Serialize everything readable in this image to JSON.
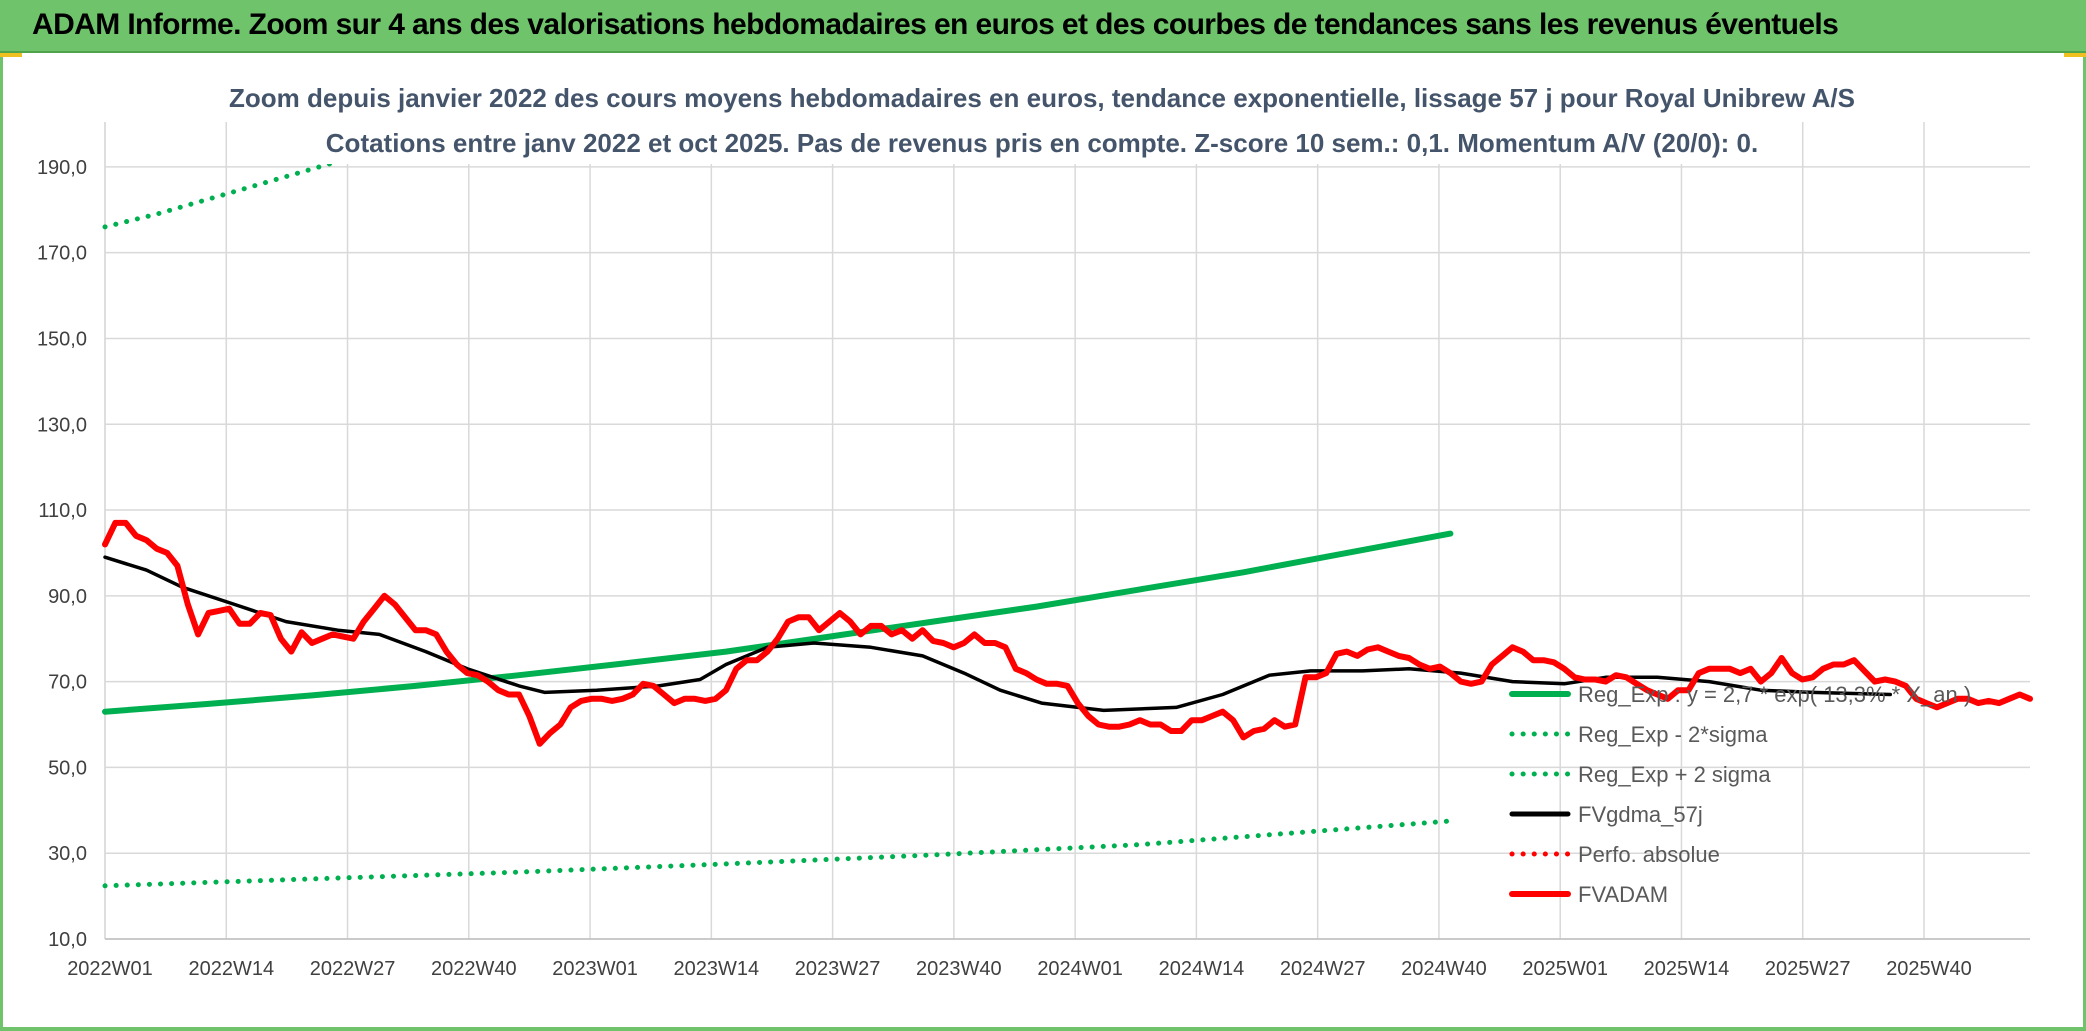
{
  "header": {
    "title": "ADAM Informe. Zoom sur 4 ans des valorisations hebdomadaires en euros et des courbes de tendances sans les revenus éventuels"
  },
  "chart_data": {
    "type": "line",
    "title_line1": "Zoom depuis janvier 2022 des cours moyens hebdomadaires en euros, tendance exponentielle, lissage 57 j pour Royal Unibrew A/S",
    "title_line2": "Cotations entre janv 2022 et oct 2025. Pas de revenus pris en compte. Z-score 10 sem.: 0,1. Momentum A/V (20/0): 0.",
    "ylim": [
      10,
      200
    ],
    "y_ticks": [
      10,
      30,
      50,
      70,
      90,
      110,
      130,
      150,
      170,
      190
    ],
    "y_tick_labels": [
      "10,0",
      "30,0",
      "50,0",
      "70,0",
      "90,0",
      "110,0",
      "130,0",
      "150,0",
      "170,0",
      "190,0"
    ],
    "x_count": 199,
    "x_tick_labels": [
      "2022W01",
      "2022W14",
      "2022W27",
      "2022W40",
      "2023W01",
      "2023W14",
      "2023W27",
      "2023W40",
      "2024W01",
      "2024W14",
      "2024W27",
      "2024W40",
      "2025W01",
      "2025W14",
      "2025W27",
      "2025W40"
    ],
    "legend_position": "bottom-right",
    "grid": true,
    "series": [
      {
        "name": "Reg_Exp : y = 2,7 * exp( 13,3% * X_an )",
        "style": "solid",
        "color": "#00b050",
        "points": [
          [
            0,
            63
          ],
          [
            20,
            64.8
          ],
          [
            40,
            66.8
          ],
          [
            60,
            69
          ],
          [
            80,
            71.5
          ],
          [
            100,
            74.2
          ],
          [
            120,
            77
          ],
          [
            140,
            80.5
          ],
          [
            160,
            84
          ],
          [
            180,
            87.5
          ],
          [
            200,
            91.5
          ],
          [
            220,
            95.5
          ],
          [
            240,
            100
          ],
          [
            260,
            104.5
          ]
        ]
      },
      {
        "name": "Reg_Exp - 2*sigma",
        "style": "dotted",
        "color": "#00b050",
        "points": [
          [
            0,
            22.4
          ],
          [
            40,
            24
          ],
          [
            80,
            25.6
          ],
          [
            120,
            27.5
          ],
          [
            160,
            29.6
          ],
          [
            200,
            32
          ],
          [
            260,
            37.5
          ]
        ]
      },
      {
        "name": "Reg_Exp + 2 sigma",
        "style": "dotted",
        "color": "#00b050",
        "points": [
          [
            0,
            176
          ],
          [
            10,
            179
          ],
          [
            20,
            182.5
          ],
          [
            30,
            186
          ],
          [
            40,
            189.5
          ],
          [
            50,
            193
          ],
          [
            60,
            196.5
          ],
          [
            70,
            200
          ]
        ],
        "points_upper": [
          [
            226,
            200
          ],
          [
            260,
            200
          ]
        ]
      },
      {
        "name": "FVgdma_57j",
        "style": "solid",
        "color": "#000000",
        "points": [
          [
            0,
            99
          ],
          [
            8,
            96
          ],
          [
            15,
            92
          ],
          [
            25,
            88
          ],
          [
            35,
            84
          ],
          [
            45,
            82
          ],
          [
            53,
            81
          ],
          [
            62,
            77
          ],
          [
            70,
            73
          ],
          [
            80,
            69
          ],
          [
            85,
            67.5
          ],
          [
            95,
            68
          ],
          [
            107,
            69
          ],
          [
            115,
            70.5
          ],
          [
            120,
            74
          ],
          [
            128,
            78
          ],
          [
            137,
            79
          ],
          [
            148,
            78
          ],
          [
            158,
            76
          ],
          [
            166,
            72
          ],
          [
            173,
            68
          ],
          [
            181,
            65
          ],
          [
            193,
            63.3
          ],
          [
            207,
            64
          ],
          [
            216,
            67
          ],
          [
            225,
            71.5
          ],
          [
            233,
            72.5
          ],
          [
            243,
            72.5
          ],
          [
            252,
            73
          ],
          [
            262,
            72
          ],
          [
            272,
            70
          ],
          [
            282,
            69.5
          ],
          [
            290,
            71
          ],
          [
            300,
            71
          ],
          [
            310,
            70
          ],
          [
            320,
            68
          ],
          [
            330,
            67.5
          ],
          [
            345,
            67
          ]
        ]
      },
      {
        "name": "Perfo. absolue",
        "style": "dotted",
        "color": "#ff0000",
        "points": []
      },
      {
        "name": "FVADAM",
        "style": "solid",
        "color": "#ff0000",
        "points": [
          [
            0,
            102
          ],
          [
            2,
            107
          ],
          [
            4,
            107
          ],
          [
            6,
            104
          ],
          [
            8,
            103
          ],
          [
            10,
            101
          ],
          [
            12,
            100
          ],
          [
            14,
            97
          ],
          [
            16,
            88
          ],
          [
            18,
            81
          ],
          [
            20,
            86
          ],
          [
            22,
            86.5
          ],
          [
            24,
            87
          ],
          [
            26,
            83.5
          ],
          [
            28,
            83.5
          ],
          [
            30,
            86
          ],
          [
            32,
            85.5
          ],
          [
            34,
            80
          ],
          [
            36,
            77
          ],
          [
            38,
            81.5
          ],
          [
            40,
            79
          ],
          [
            42,
            80
          ],
          [
            44,
            81
          ],
          [
            46,
            80.5
          ],
          [
            48,
            80
          ],
          [
            50,
            84
          ],
          [
            52,
            87
          ],
          [
            54,
            90
          ],
          [
            56,
            88
          ],
          [
            58,
            85
          ],
          [
            60,
            82
          ],
          [
            62,
            82
          ],
          [
            64,
            81
          ],
          [
            66,
            77
          ],
          [
            68,
            74
          ],
          [
            70,
            72
          ],
          [
            72,
            71.5
          ],
          [
            74,
            70
          ],
          [
            76,
            68
          ],
          [
            78,
            67
          ],
          [
            80,
            67
          ],
          [
            82,
            62
          ],
          [
            84,
            55.5
          ],
          [
            86,
            58
          ],
          [
            88,
            60
          ],
          [
            90,
            64
          ],
          [
            92,
            65.5
          ],
          [
            94,
            66
          ],
          [
            96,
            66
          ],
          [
            98,
            65.5
          ],
          [
            100,
            66
          ],
          [
            102,
            67
          ],
          [
            104,
            69.5
          ],
          [
            106,
            69
          ],
          [
            108,
            67
          ],
          [
            110,
            65
          ],
          [
            112,
            66
          ],
          [
            114,
            66
          ],
          [
            116,
            65.5
          ],
          [
            118,
            66
          ],
          [
            120,
            68
          ],
          [
            122,
            73
          ],
          [
            124,
            75
          ],
          [
            126,
            75
          ],
          [
            128,
            77
          ],
          [
            130,
            80
          ],
          [
            132,
            84
          ],
          [
            134,
            85
          ],
          [
            136,
            85
          ],
          [
            138,
            82
          ],
          [
            140,
            84
          ],
          [
            142,
            86
          ],
          [
            144,
            84
          ],
          [
            146,
            81
          ],
          [
            148,
            83
          ],
          [
            150,
            83
          ],
          [
            152,
            81
          ],
          [
            154,
            82
          ],
          [
            156,
            80
          ],
          [
            158,
            82
          ],
          [
            160,
            79.5
          ],
          [
            162,
            79
          ],
          [
            164,
            78
          ],
          [
            166,
            79
          ],
          [
            168,
            81
          ],
          [
            170,
            79
          ],
          [
            172,
            79
          ],
          [
            174,
            78
          ],
          [
            176,
            73
          ],
          [
            178,
            72
          ],
          [
            180,
            70.5
          ],
          [
            182,
            69.5
          ],
          [
            184,
            69.5
          ],
          [
            186,
            69
          ],
          [
            188,
            65
          ],
          [
            190,
            62
          ],
          [
            192,
            60
          ],
          [
            194,
            59.5
          ],
          [
            196,
            59.5
          ],
          [
            198,
            60
          ],
          [
            200,
            61
          ],
          [
            202,
            60
          ],
          [
            204,
            60
          ],
          [
            206,
            58.5
          ],
          [
            208,
            58.5
          ],
          [
            210,
            61
          ],
          [
            212,
            61
          ],
          [
            214,
            62
          ],
          [
            216,
            63
          ],
          [
            218,
            61
          ],
          [
            220,
            57
          ],
          [
            222,
            58.5
          ],
          [
            224,
            59
          ],
          [
            226,
            61
          ],
          [
            228,
            59.5
          ],
          [
            230,
            60
          ],
          [
            232,
            71
          ],
          [
            234,
            71
          ],
          [
            236,
            72
          ],
          [
            238,
            76.5
          ],
          [
            240,
            77
          ],
          [
            242,
            76
          ],
          [
            244,
            77.5
          ],
          [
            246,
            78
          ],
          [
            248,
            77
          ],
          [
            250,
            76
          ],
          [
            252,
            75.5
          ],
          [
            254,
            74
          ],
          [
            256,
            73
          ],
          [
            258,
            73.5
          ],
          [
            260,
            72
          ],
          [
            262,
            70
          ],
          [
            264,
            69.5
          ],
          [
            266,
            70
          ],
          [
            268,
            74
          ],
          [
            270,
            76
          ],
          [
            272,
            78
          ],
          [
            274,
            77
          ],
          [
            276,
            75
          ],
          [
            278,
            75
          ],
          [
            280,
            74.5
          ],
          [
            282,
            73
          ],
          [
            284,
            71
          ],
          [
            286,
            70.5
          ],
          [
            288,
            70.5
          ],
          [
            290,
            70
          ],
          [
            292,
            71.5
          ],
          [
            294,
            71
          ],
          [
            296,
            69.5
          ],
          [
            298,
            68
          ],
          [
            300,
            67
          ],
          [
            302,
            66
          ],
          [
            304,
            68
          ],
          [
            306,
            68
          ],
          [
            308,
            72
          ],
          [
            310,
            73
          ],
          [
            312,
            73
          ],
          [
            314,
            73
          ],
          [
            316,
            72
          ],
          [
            318,
            73
          ],
          [
            320,
            70
          ],
          [
            322,
            72
          ],
          [
            324,
            75.5
          ],
          [
            326,
            72
          ],
          [
            328,
            70.5
          ],
          [
            330,
            71
          ],
          [
            332,
            73
          ],
          [
            334,
            74
          ],
          [
            336,
            74
          ],
          [
            338,
            75
          ],
          [
            340,
            72.5
          ],
          [
            342,
            70
          ],
          [
            344,
            70.5
          ],
          [
            346,
            70
          ],
          [
            348,
            69
          ],
          [
            350,
            66
          ],
          [
            352,
            65
          ],
          [
            354,
            64
          ],
          [
            356,
            65
          ],
          [
            358,
            66
          ],
          [
            360,
            66
          ],
          [
            362,
            65
          ],
          [
            364,
            65.5
          ],
          [
            366,
            65
          ],
          [
            368,
            66
          ],
          [
            370,
            67
          ],
          [
            372,
            66
          ]
        ]
      }
    ]
  }
}
